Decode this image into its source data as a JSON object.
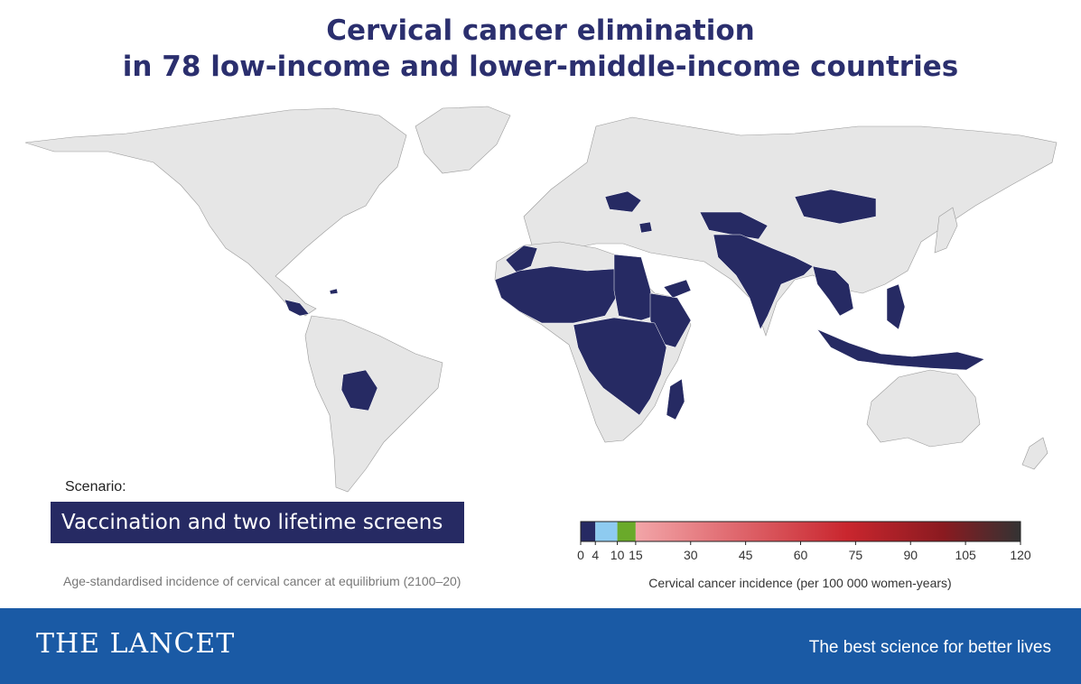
{
  "title": {
    "line1": "Cervical cancer elimination",
    "line2": "in 78 low-income and lower-middle-income countries"
  },
  "scenario": {
    "label": "Scenario:",
    "value": "Vaccination and two lifetime screens"
  },
  "caption": "Age-standardised incidence of cervical cancer at equilibrium (2100–20)",
  "legend": {
    "title": "Cervical cancer incidence (per 100 000 women-years)",
    "ticks": [
      "0",
      "4",
      "10",
      "15",
      "30",
      "45",
      "60",
      "75",
      "90",
      "105",
      "120"
    ],
    "bins": [
      {
        "from": 0,
        "to": 4,
        "color": "#262a63"
      },
      {
        "from": 4,
        "to": 10,
        "color": "#8ecbf0"
      },
      {
        "from": 10,
        "to": 15,
        "color": "#6aaa2a"
      }
    ],
    "gradient": {
      "from": 15,
      "to": 120,
      "colors": [
        "#f2a5a8",
        "#e06a70",
        "#c9262e",
        "#8a1a20",
        "#333333"
      ]
    }
  },
  "map": {
    "category": "0–4 per 100 000 women-years",
    "highlight_color": "#262a63",
    "land_color": "#e6e6e6",
    "regions": [
      "Central America",
      "Bolivia",
      "Haiti",
      "Morocco",
      "West Africa",
      "Sahel",
      "Egypt",
      "Sudan",
      "Horn of Africa",
      "Central Africa",
      "East Africa",
      "Southern Africa (north)",
      "Madagascar",
      "Ukraine",
      "Syria",
      "Yemen",
      "Central Asia",
      "Pakistan",
      "India",
      "Bangladesh",
      "Myanmar",
      "Mongolia",
      "Indochina",
      "Philippines",
      "Indonesia",
      "Papua New Guinea"
    ]
  },
  "footer": {
    "journal": "THE LANCET",
    "tagline": "The best science for better lives"
  }
}
